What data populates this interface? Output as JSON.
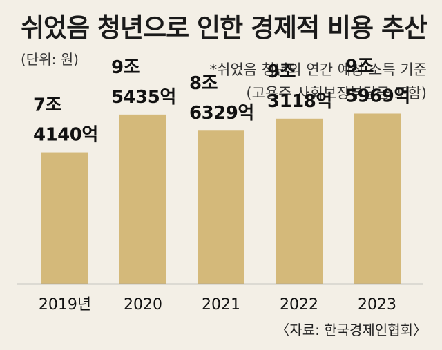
{
  "header": {
    "title": "쉬었음 청년으로 인한 경제적 비용 추산",
    "unit": "(단위: 원)"
  },
  "note": {
    "line1": "*쉬었음 청년의 연간 예상 소득 기준",
    "line2": "(고용주 사회보장부담금 포함)"
  },
  "source": "〈자료: 한국경제인협회〉",
  "colors": {
    "bar": "#d4b97a",
    "axis": "#9a9a9a",
    "background": "#f3efe6"
  },
  "chart_data": {
    "type": "bar",
    "title": "쉬었음 청년으로 인한 경제적 비용 추산",
    "ylabel": "(단위: 원)",
    "categories": [
      "2019년",
      "2020",
      "2021",
      "2022",
      "2023"
    ],
    "values": [
      7414000000000,
      9543500000000,
      8632900000000,
      9311800000000,
      9596900000000
    ],
    "labels": [
      [
        "7조",
        "4140억"
      ],
      [
        "9조",
        "5435억"
      ],
      [
        "8조",
        "6329억"
      ],
      [
        "9조",
        "3118억"
      ],
      [
        "9조",
        "5969억"
      ]
    ],
    "ylim": [
      0,
      16000000000000
    ],
    "grid": false,
    "legend": "none"
  }
}
